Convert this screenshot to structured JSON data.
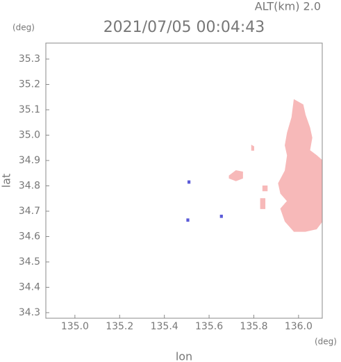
{
  "chart_data": {
    "type": "map",
    "title": "2021/07/05 00:04:43",
    "altitude_label": "ALT(km) 2.0",
    "x_unit": "(deg)",
    "y_unit": "(deg)",
    "x_label": "lon",
    "y_label": "lat",
    "xlim": [
      134.87,
      136.106
    ],
    "ylim": [
      34.278,
      35.363
    ],
    "xticks": [
      {
        "value": 135.0,
        "label": "135.0"
      },
      135.2,
      135.4,
      135.6,
      135.8,
      {
        "value": 136.0,
        "label": "136.0"
      }
    ],
    "yticks": [
      34.3,
      34.4,
      34.5,
      34.6,
      34.7,
      34.8,
      34.9,
      {
        "value": 35.0,
        "label": "35.0"
      },
      35.1,
      35.2,
      35.3
    ],
    "echoes": [
      {
        "color": "#f7b9b9",
        "lon": [
          135.98,
          136.02,
          136.03,
          136.05,
          136.06,
          136.05,
          136.08,
          136.106,
          136.106,
          136.08,
          136.03,
          135.98,
          135.94,
          135.92,
          135.95,
          135.92,
          135.91,
          135.94,
          135.95,
          135.94,
          135.95,
          135.97
        ],
        "lat": [
          35.14,
          35.12,
          35.08,
          35.03,
          34.99,
          34.94,
          34.92,
          34.9,
          34.66,
          34.63,
          34.62,
          34.62,
          34.66,
          34.71,
          34.74,
          34.77,
          34.81,
          34.86,
          34.92,
          34.96,
          35.01,
          35.07
        ]
      },
      {
        "color": "#f7b9b9",
        "lon": [
          135.69,
          135.72,
          135.75,
          135.75,
          135.72,
          135.69
        ],
        "lat": [
          34.84,
          34.86,
          34.855,
          34.83,
          34.82,
          34.83
        ]
      },
      {
        "color": "#f7b9b9",
        "lon": [
          135.79,
          135.8,
          135.8,
          135.79
        ],
        "lat": [
          34.96,
          34.955,
          34.94,
          34.94
        ]
      },
      {
        "color": "#f7b9b9",
        "lon": [
          135.84,
          135.86,
          135.86,
          135.84
        ],
        "lat": [
          34.8,
          34.8,
          34.78,
          34.78
        ]
      },
      {
        "color": "#f7b9b9",
        "lon": [
          135.83,
          135.85,
          135.85,
          135.83
        ],
        "lat": [
          34.75,
          34.75,
          34.71,
          34.71
        ]
      },
      {
        "color": "#5a5ad8",
        "lon": [
          135.5,
          135.51,
          135.51,
          135.5
        ],
        "lat": [
          34.67,
          34.67,
          34.66,
          34.66
        ]
      },
      {
        "color": "#5a5ad8",
        "lon": [
          135.65,
          135.66,
          135.66,
          135.65
        ],
        "lat": [
          34.685,
          34.685,
          34.675,
          34.675
        ]
      },
      {
        "color": "#5a5ad8",
        "lon": [
          135.505,
          135.515,
          135.515,
          135.505
        ],
        "lat": [
          34.82,
          34.82,
          34.81,
          34.81
        ]
      }
    ]
  }
}
